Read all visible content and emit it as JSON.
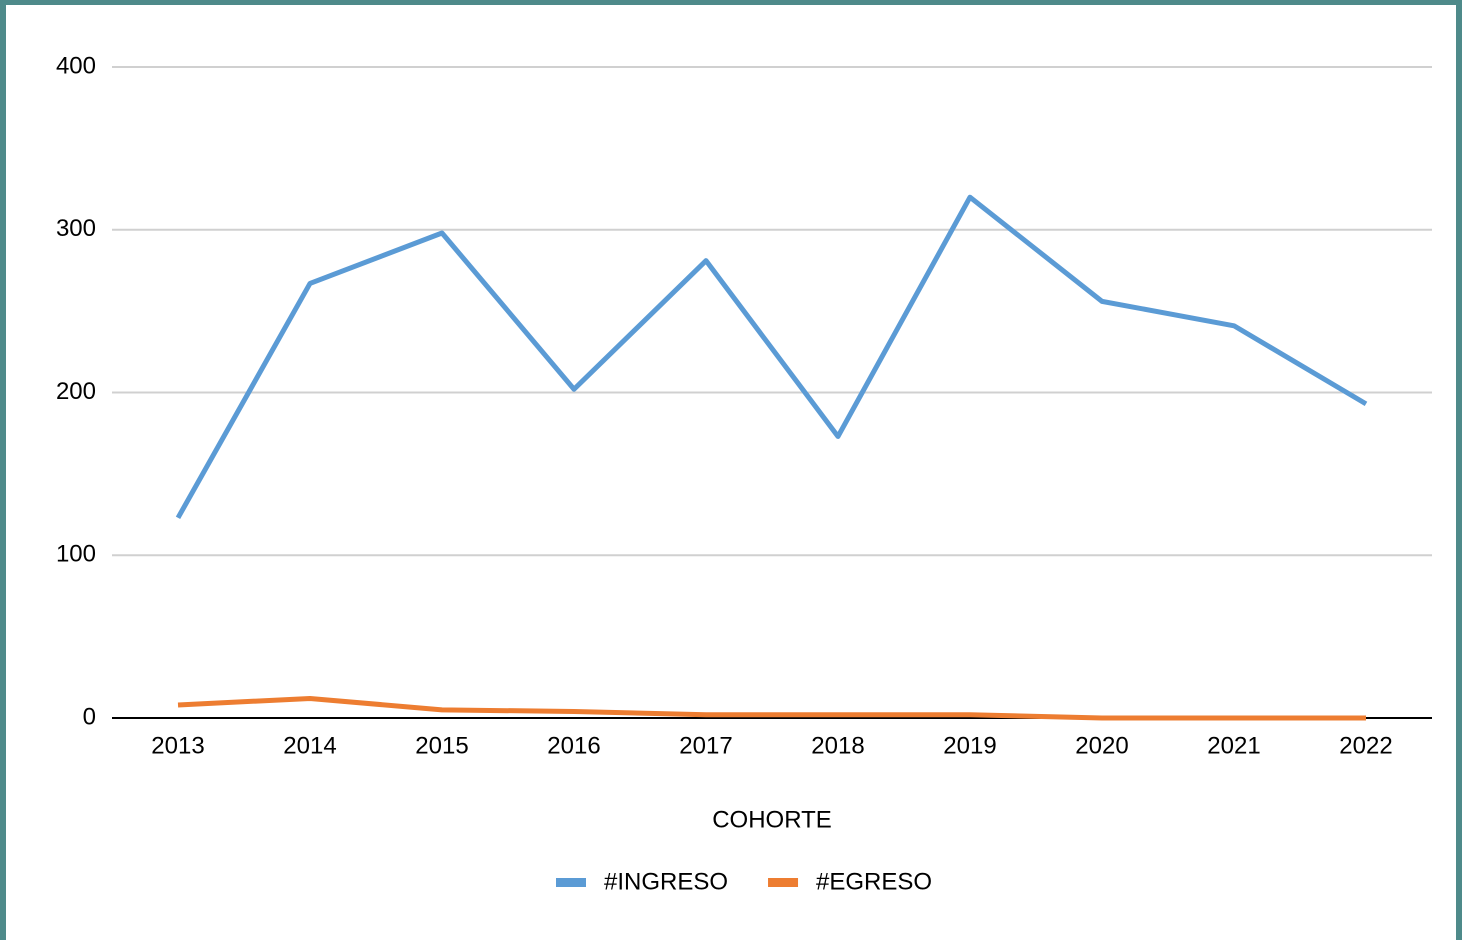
{
  "chart_data": {
    "type": "line",
    "x_label": "COHORTE",
    "categories": [
      "2013",
      "2014",
      "2015",
      "2016",
      "2017",
      "2018",
      "2019",
      "2020",
      "2021",
      "2022"
    ],
    "series": [
      {
        "name": "#INGRESO",
        "color": "#5b9bd5",
        "values": [
          123,
          267,
          298,
          202,
          281,
          173,
          320,
          256,
          241,
          193
        ]
      },
      {
        "name": "#EGRESO",
        "color": "#ed7d31",
        "values": [
          8,
          12,
          5,
          4,
          2,
          2,
          2,
          0,
          0,
          0
        ]
      }
    ],
    "ylim": [
      0,
      400
    ],
    "yticks": [
      0,
      100,
      200,
      300,
      400
    ],
    "grid": true,
    "legend": "bottom"
  }
}
